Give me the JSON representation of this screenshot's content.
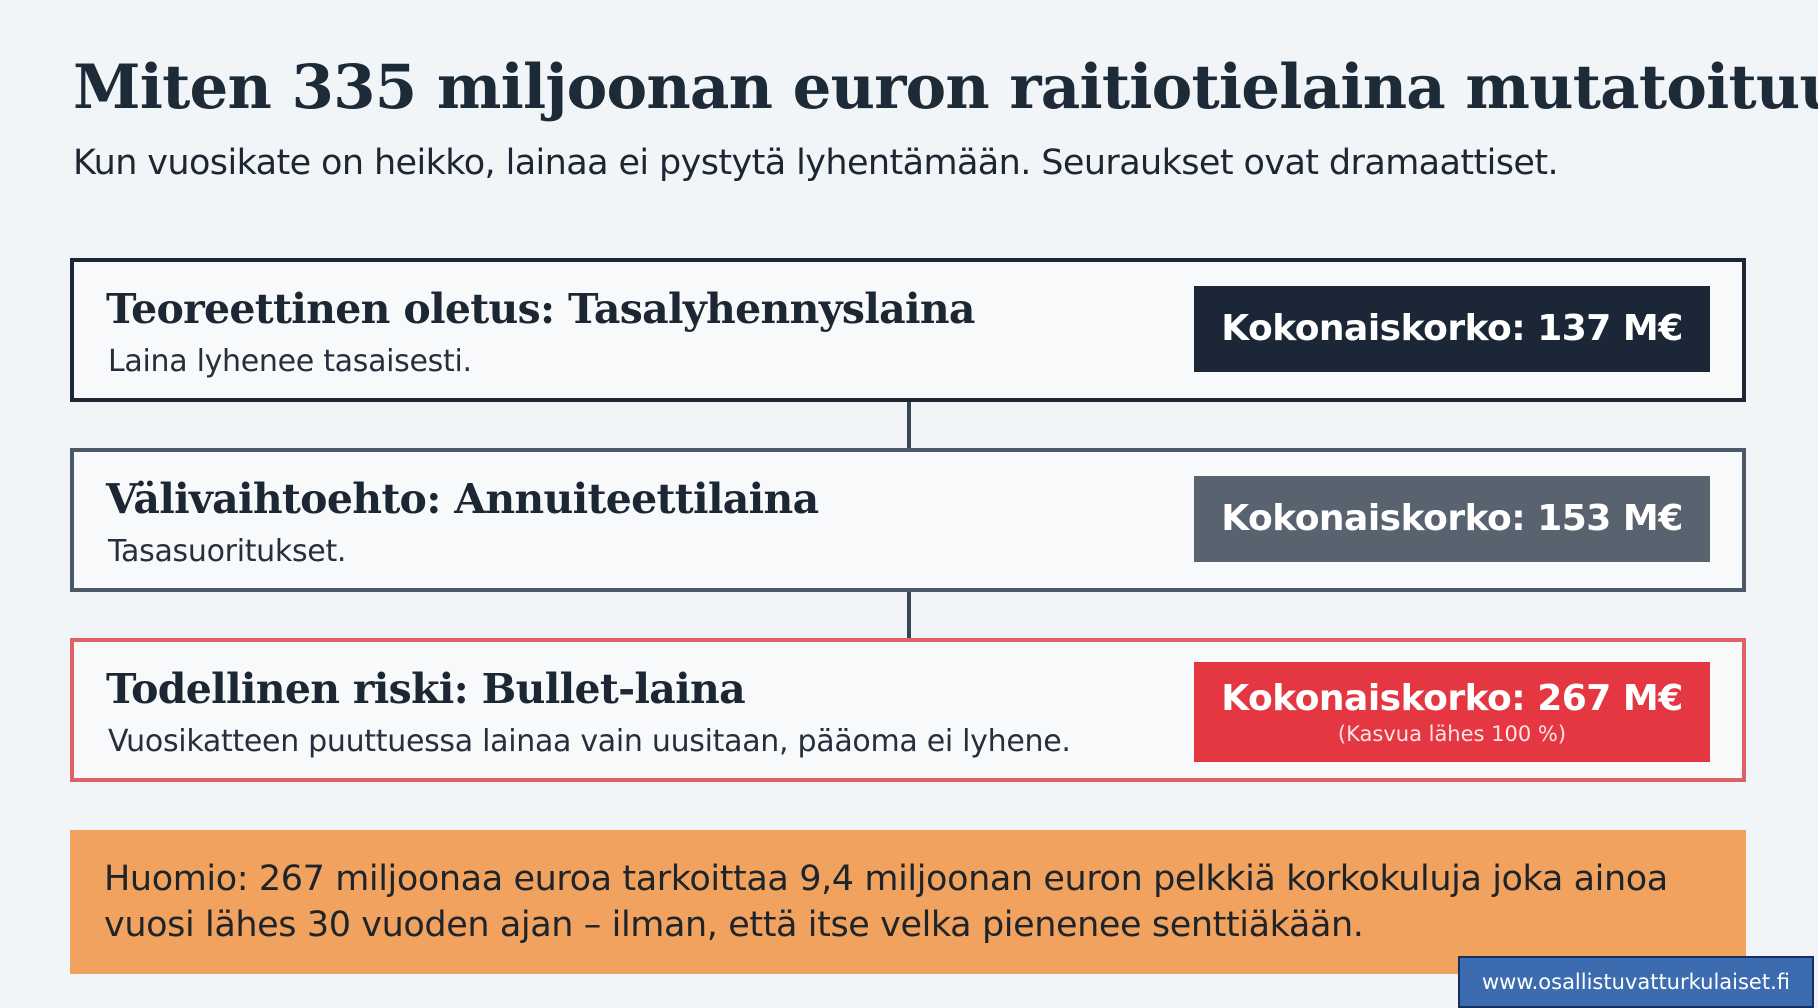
{
  "header": {
    "title": "Miten 335 miljoonan euron raitiotielaina mutatoituu",
    "subtitle": "Kun vuosikate on heikko, lainaa ei pystytä lyhentämään. Seuraukset ovat dramaattiset."
  },
  "cards": [
    {
      "heading": "Teoreettinen oletus: Tasalyhennyslaina",
      "description": "Laina lyhenee tasaisesti.",
      "badge": "Kokonaiskorko: 137 M€",
      "badge_color": "#1b2736"
    },
    {
      "heading": "Välivaihtoehto: Annuiteettilaina",
      "description": "Tasasuoritukset.",
      "badge": "Kokonaiskorko: 153 M€",
      "badge_color": "#58636f"
    },
    {
      "heading": "Todellinen riski: Bullet-laina",
      "description": "Vuosikatteen puuttuessa lainaa vain uusitaan, pääoma ei lyhene.",
      "badge": "Kokonaiskorko: 267 M€",
      "badge_note": "(Kasvua lähes 100 %)",
      "badge_color": "#e53742"
    }
  ],
  "note": {
    "text": "Huomio: 267 miljoonaa euroa tarkoittaa 9,4 miljoonan euron pelkkiä korkokuluja joka ainoa vuosi lähes 30 vuoden ajan – ilman, että itse velka pienenee senttiäkään.",
    "background": "#f0a25e"
  },
  "watermark": {
    "url": "www.osallistuvatturkulaiset.fi"
  }
}
